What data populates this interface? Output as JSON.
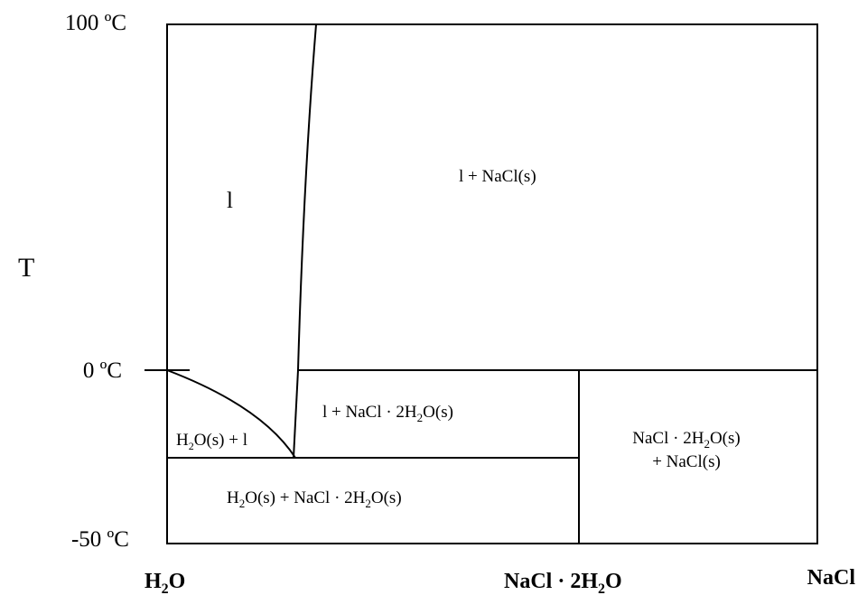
{
  "diagram": {
    "y_axis": {
      "label": "T",
      "ticks": {
        "top": "100 ºC",
        "middle": "0 ºC",
        "bottom": "-50 ºC"
      }
    },
    "x_axis": {
      "left": {
        "formula": "H",
        "sub": "2",
        "rest": "O"
      },
      "middle": {
        "formula": "NaCl · 2H",
        "sub": "2",
        "rest": "O"
      },
      "right": {
        "formula": "NaCl"
      }
    },
    "regions": {
      "liquid": "l",
      "liquid_nacl": "l + NaCl(s)",
      "liquid_dihydrate": {
        "pre": "l + NaCl · 2H",
        "sub": "2",
        "post": "O(s)"
      },
      "ice_liquid": {
        "pre": "H",
        "sub": "2",
        "post": "O(s) + l"
      },
      "ice_dihydrate": {
        "pre": "H",
        "sub": "2",
        "post": "O(s) + NaCl · 2H",
        "sub2": "2",
        "post2": "O(s)"
      },
      "dihydrate_nacl": {
        "line1": {
          "pre": "NaCl · 2H",
          "sub": "2",
          "post": "O(s)"
        },
        "line2": "+ NaCl(s)"
      }
    }
  }
}
